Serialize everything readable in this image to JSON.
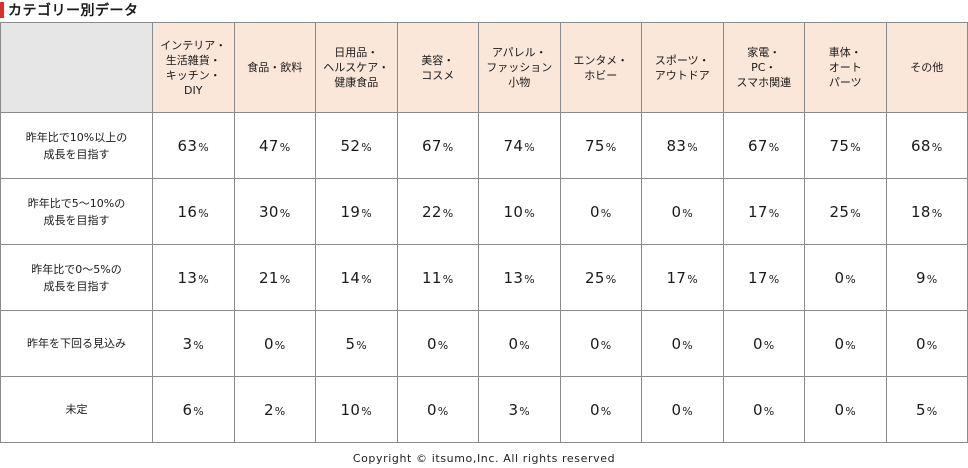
{
  "header": {
    "title": "カテゴリー別データ",
    "accent_color": "#d9302a"
  },
  "footer": {
    "copyright": "Copyright © itsumo,Inc. All rights reserved"
  },
  "colors": {
    "header_fill": "#fbe6da",
    "corner_fill": "#e6e6e6",
    "border": "#8a8a8a"
  },
  "chart_data": {
    "type": "table",
    "title": "カテゴリー別データ",
    "unit": "%",
    "columns": [
      "インテリア・\n生活雑貨・\nキッチン・\nDIY",
      "食品・飲料",
      "日用品・\nヘルスケア・\n健康食品",
      "美容・\nコスメ",
      "アパレル・\nファッション\n小物",
      "エンタメ・\nホビー",
      "スポーツ・\nアウトドア",
      "家電・\nPC・\nスマホ関連",
      "車体・\nオート\nパーツ",
      "その他"
    ],
    "rows": [
      {
        "label": "昨年比で10%以上の\n成長を目指す",
        "values": [
          63,
          47,
          52,
          67,
          74,
          75,
          83,
          67,
          75,
          68
        ]
      },
      {
        "label": "昨年比で5～10%の\n成長を目指す",
        "values": [
          16,
          30,
          19,
          22,
          10,
          0,
          0,
          17,
          25,
          18
        ]
      },
      {
        "label": "昨年比で0～5%の\n成長を目指す",
        "values": [
          13,
          21,
          14,
          11,
          13,
          25,
          17,
          17,
          0,
          9
        ]
      },
      {
        "label": "昨年を下回る見込み",
        "values": [
          3,
          0,
          5,
          0,
          0,
          0,
          0,
          0,
          0,
          0
        ]
      },
      {
        "label": "未定",
        "values": [
          6,
          2,
          10,
          0,
          3,
          0,
          0,
          0,
          0,
          5
        ]
      }
    ]
  }
}
